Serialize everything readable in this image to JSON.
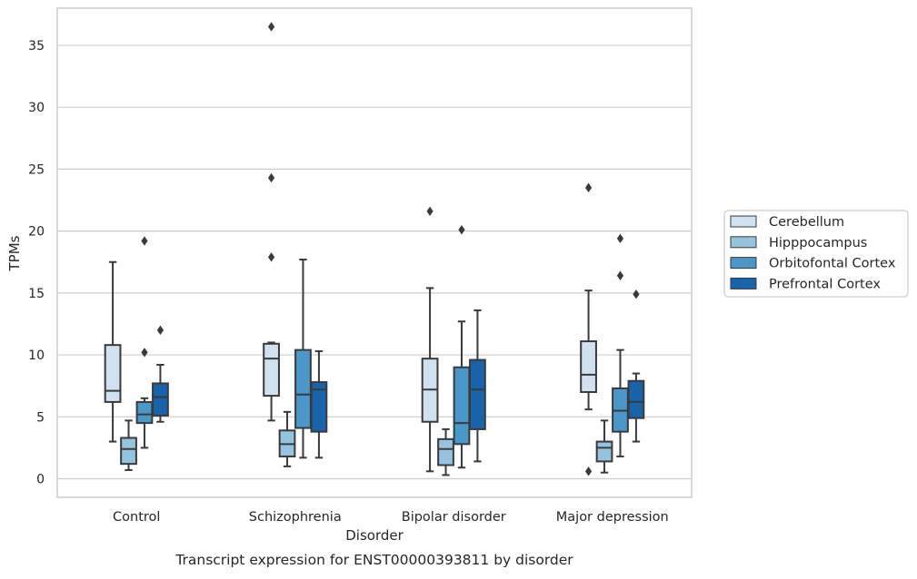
{
  "caption": "Transcript expression for ENST00000393811 by disorder",
  "colors": {
    "Cerebellum": "#d0e1f2",
    "Hipppocampus": "#94c4df",
    "Orbitofontal Cortex": "#4a98c9",
    "Prefrontal Cortex": "#1764ab",
    "box_line": "#3a3a3a",
    "grid": "#cccccc",
    "frame": "#cccccc"
  },
  "chart_data": {
    "type": "box",
    "title": "",
    "xlabel": "Disorder",
    "ylabel": "TPMs",
    "ylim": [
      -1.5,
      38.0
    ],
    "yticks": [
      0,
      5,
      10,
      15,
      20,
      25,
      30,
      35
    ],
    "grid": "horizontal",
    "legend_placement": "right-outside",
    "categories": [
      "Control",
      "Schizophrenia",
      "Bipolar disorder",
      "Major depression"
    ],
    "series": [
      {
        "name": "Cerebellum",
        "boxes": [
          {
            "whislo": 3.0,
            "q1": 6.2,
            "med": 7.1,
            "q3": 10.8,
            "whishi": 17.5,
            "fliers": []
          },
          {
            "whislo": 4.7,
            "q1": 6.7,
            "med": 9.7,
            "q3": 10.9,
            "whishi": 11.0,
            "fliers": [
              17.9,
              24.3,
              36.5
            ]
          },
          {
            "whislo": 0.6,
            "q1": 4.6,
            "med": 7.2,
            "q3": 9.7,
            "whishi": 15.4,
            "fliers": [
              21.6
            ]
          },
          {
            "whislo": 5.6,
            "q1": 7.0,
            "med": 8.4,
            "q3": 11.1,
            "whishi": 15.2,
            "fliers": [
              0.6,
              23.5
            ]
          }
        ]
      },
      {
        "name": "Hipppocampus",
        "boxes": [
          {
            "whislo": 0.7,
            "q1": 1.2,
            "med": 2.4,
            "q3": 3.3,
            "whishi": 4.7,
            "fliers": []
          },
          {
            "whislo": 1.0,
            "q1": 1.8,
            "med": 2.8,
            "q3": 3.9,
            "whishi": 5.4,
            "fliers": []
          },
          {
            "whislo": 0.3,
            "q1": 1.1,
            "med": 2.4,
            "q3": 3.2,
            "whishi": 4.0,
            "fliers": []
          },
          {
            "whislo": 0.5,
            "q1": 1.4,
            "med": 2.5,
            "q3": 3.0,
            "whishi": 4.7,
            "fliers": []
          }
        ]
      },
      {
        "name": "Orbitofontal Cortex",
        "boxes": [
          {
            "whislo": 2.5,
            "q1": 4.5,
            "med": 5.2,
            "q3": 6.2,
            "whishi": 6.5,
            "fliers": [
              10.2,
              19.2
            ]
          },
          {
            "whislo": 1.7,
            "q1": 4.1,
            "med": 6.8,
            "q3": 10.4,
            "whishi": 17.7,
            "fliers": []
          },
          {
            "whislo": 0.9,
            "q1": 2.8,
            "med": 4.5,
            "q3": 9.0,
            "whishi": 12.7,
            "fliers": [
              20.1
            ]
          },
          {
            "whislo": 1.8,
            "q1": 3.8,
            "med": 5.5,
            "q3": 7.3,
            "whishi": 10.4,
            "fliers": [
              16.4,
              19.4
            ]
          }
        ]
      },
      {
        "name": "Prefrontal Cortex",
        "boxes": [
          {
            "whislo": 4.6,
            "q1": 5.1,
            "med": 6.6,
            "q3": 7.7,
            "whishi": 9.2,
            "fliers": [
              12.0
            ]
          },
          {
            "whislo": 1.7,
            "q1": 3.8,
            "med": 7.2,
            "q3": 7.8,
            "whishi": 10.3,
            "fliers": []
          },
          {
            "whislo": 1.4,
            "q1": 4.0,
            "med": 7.2,
            "q3": 9.6,
            "whishi": 13.6,
            "fliers": []
          },
          {
            "whislo": 3.0,
            "q1": 4.9,
            "med": 6.2,
            "q3": 7.9,
            "whishi": 8.5,
            "fliers": [
              14.9
            ]
          }
        ]
      }
    ]
  }
}
